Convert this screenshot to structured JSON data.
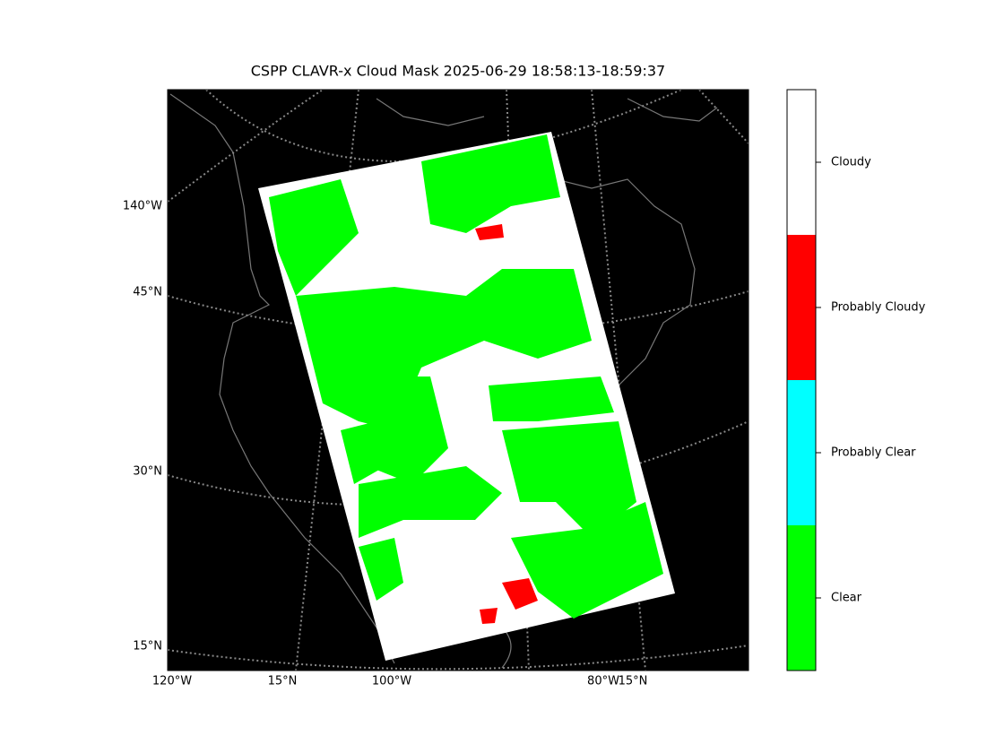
{
  "title": "CSPP CLAVR-x Cloud Mask 2025-06-29 18:58:13-18:59:37",
  "map": {
    "labels": [
      "140°W",
      "45°N",
      "30°N",
      "15°N",
      "120°W",
      "15°N",
      "100°W",
      "80°W",
      "15°N"
    ]
  },
  "colorbar": {
    "categories": [
      "Clear",
      "Probably Clear",
      "Probably Cloudy",
      "Cloudy"
    ],
    "colors": [
      "#00ff00",
      "#00ffff",
      "#ff0000",
      "#ffffff"
    ]
  }
}
